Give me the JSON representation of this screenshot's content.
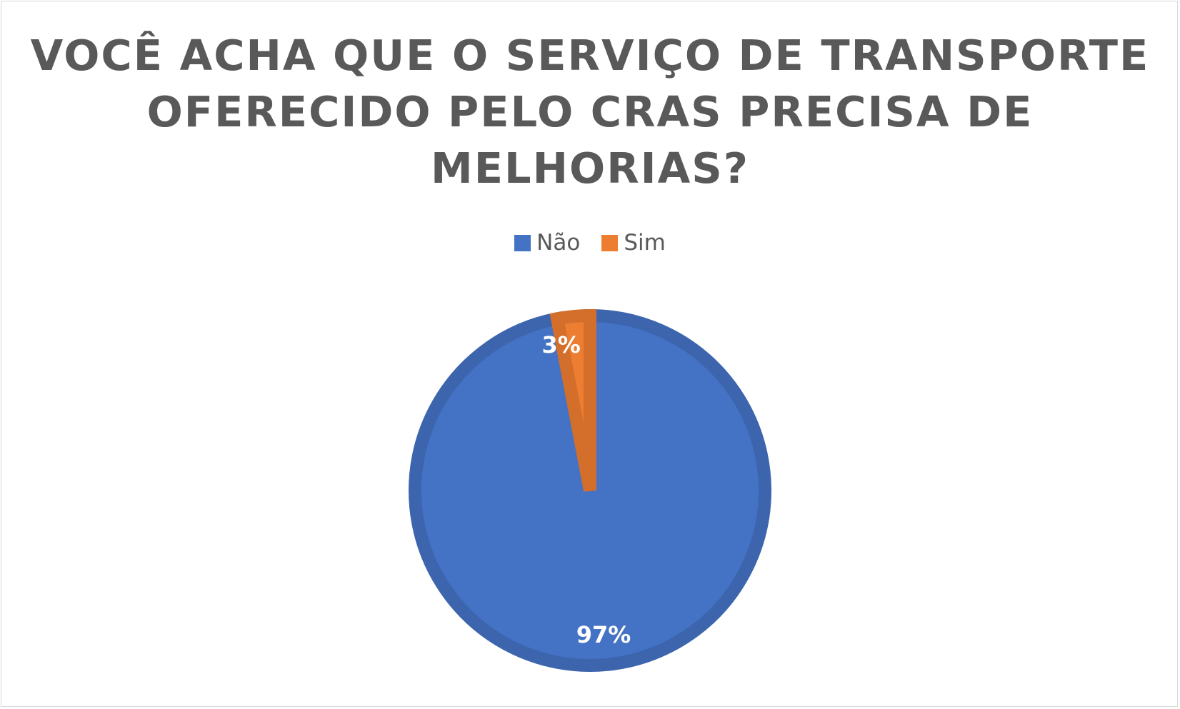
{
  "chart_data": {
    "type": "pie",
    "title_lines": [
      "VOCÊ ACHA QUE O SERVIÇO DE TRANSPORTE",
      "OFERECIDO PELO CRAS PRECISA DE",
      "MELHORIAS?"
    ],
    "categories": [
      "Não",
      "Sim"
    ],
    "values": [
      97,
      3
    ],
    "data_labels": [
      "97%",
      "3%"
    ],
    "colors": [
      "#4472c4",
      "#ed7d31"
    ],
    "border_colors": [
      "#3c65ae",
      "#d46f2b"
    ],
    "legend_position": "top"
  }
}
